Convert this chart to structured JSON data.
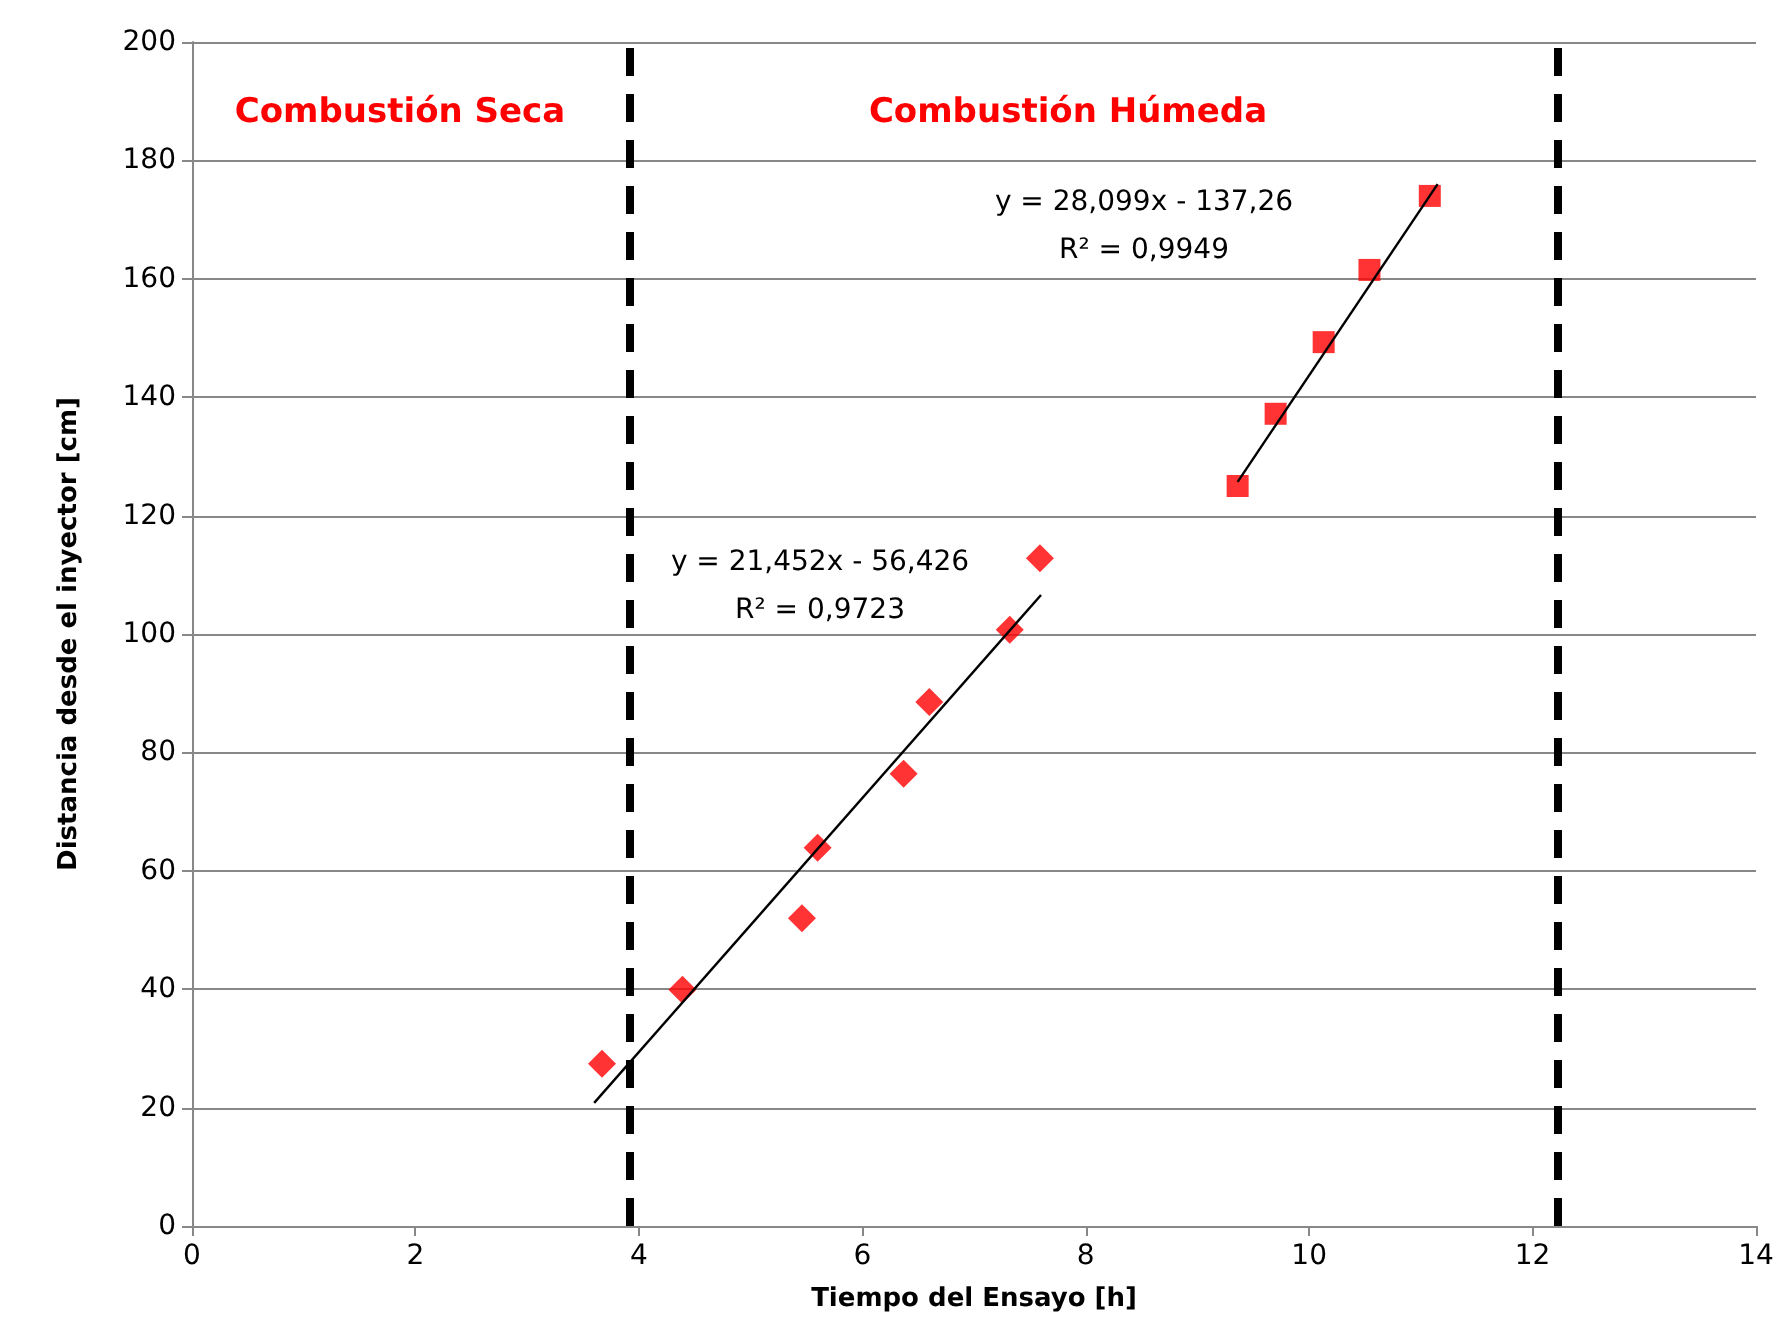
{
  "chart_data": {
    "type": "scatter",
    "xlabel": "Tiempo del Ensayo [h]",
    "ylabel": "Distancia desde el inyector [cm]",
    "xlim": [
      0,
      14
    ],
    "xticks": [
      0,
      2,
      4,
      6,
      8,
      10,
      12,
      14
    ],
    "ylim": [
      0,
      200
    ],
    "yticks": [
      0,
      20,
      40,
      60,
      80,
      100,
      120,
      140,
      160,
      180,
      200
    ],
    "grid": "y",
    "series": [
      {
        "marker": "diamond",
        "color": "#ff0000",
        "x": [
          3.67,
          4.39,
          5.46,
          5.6,
          6.37,
          6.6,
          7.32,
          7.59
        ],
        "values": [
          27.4,
          39.9,
          52,
          63.9,
          76.4,
          88.5,
          100.7,
          112.8
        ]
      },
      {
        "marker": "square",
        "color": "#ff0000",
        "x": [
          9.36,
          9.7,
          10.13,
          10.54,
          11.08
        ],
        "values": [
          125,
          137.2,
          149.3,
          161.5,
          174
        ]
      },
      {
        "type": "line",
        "marker": "none",
        "line_style": "solid",
        "color": "#000000",
        "x": [
          3.6,
          7.6
        ],
        "values": [
          20.8,
          106.6
        ]
      },
      {
        "type": "line",
        "marker": "none",
        "line_style": "solid",
        "color": "#000000",
        "x": [
          9.36,
          11.15
        ],
        "values": [
          125.7,
          176
        ]
      }
    ],
    "ref_lines": [
      {
        "axis": "x",
        "value": 3.92,
        "color": "#000000",
        "line_style": "dashed"
      },
      {
        "axis": "x",
        "value": 12.23,
        "color": "#000000",
        "line_style": "dashed"
      }
    ],
    "annotations": [
      "Combustión Seca",
      "Combustión Húmeda",
      "y = 21,452x - 56,426\nR² = 0,9723",
      "y = 28,099x - 137,26\nR² = 0,9949"
    ]
  }
}
